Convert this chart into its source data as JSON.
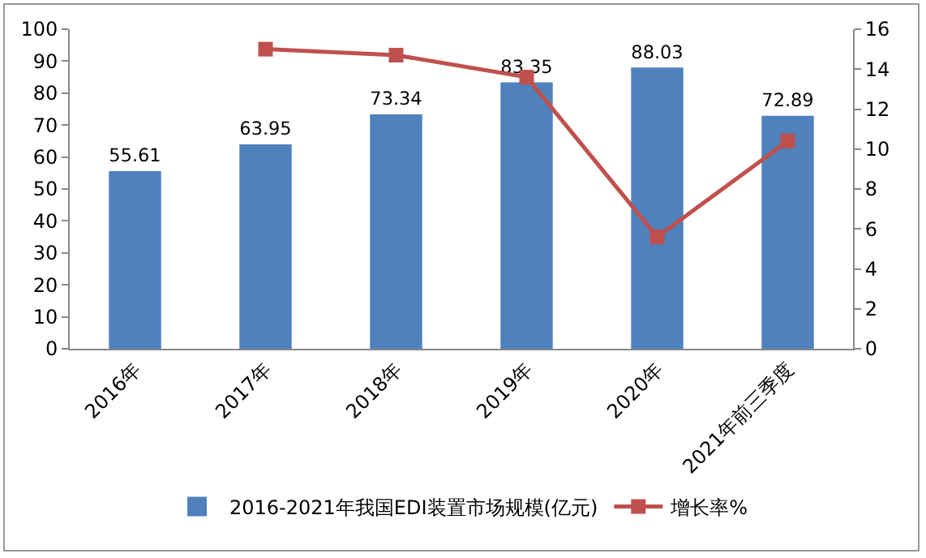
{
  "chart_data": {
    "type": "bar",
    "categories": [
      "2016年",
      "2017年",
      "2018年",
      "2019年",
      "2020年",
      "2021年前三季度"
    ],
    "series": [
      {
        "name": "2016-2021年我国EDI装置市场规模(亿元)",
        "color": "#4f81bd",
        "values": [
          55.61,
          63.95,
          73.34,
          83.35,
          88.03,
          72.89
        ],
        "value_labels": [
          "55.61",
          "63.95",
          "73.34",
          "83.35",
          "88.03",
          "72.89"
        ]
      },
      {
        "name": "增长率%",
        "type": "line",
        "axis": "y2",
        "color": "#c0504d",
        "values": [
          null,
          15.0,
          14.7,
          13.6,
          5.6,
          10.4
        ]
      }
    ],
    "ylim": [
      0,
      100
    ],
    "yticks": [
      0,
      10,
      20,
      30,
      40,
      50,
      60,
      70,
      80,
      90,
      100
    ],
    "y2lim": [
      0,
      16
    ],
    "y2ticks": [
      0,
      2,
      4,
      6,
      8,
      10,
      12,
      14,
      16
    ],
    "marker": "square",
    "grid": false,
    "legend": "bottom"
  }
}
